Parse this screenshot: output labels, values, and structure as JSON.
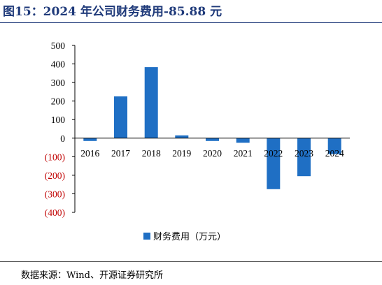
{
  "figure_title": "图15：2024 年公司财务费用-85.88 元",
  "source_note": "数据来源：Wind、开源证券研究所",
  "colors": {
    "bar": "#1F6FC4",
    "title": "#1F3A7A",
    "negative_tick": "#C00000",
    "axis": "#000000"
  },
  "chart_data": {
    "type": "bar",
    "categories": [
      "2016",
      "2017",
      "2018",
      "2019",
      "2020",
      "2021",
      "2022",
      "2023",
      "2024"
    ],
    "series": [
      {
        "name": "财务费用（万元）",
        "values": [
          -15,
          225,
          383,
          15,
          -15,
          -25,
          -275,
          -205,
          -86
        ]
      }
    ],
    "ylim": [
      -400,
      500
    ],
    "yticks": [
      500,
      400,
      300,
      200,
      100,
      0,
      -100,
      -200,
      -300,
      -400
    ],
    "ytick_labels": [
      "500",
      "400",
      "300",
      "200",
      "100",
      "0",
      "(100)",
      "(200)",
      "(300)",
      "(400)"
    ],
    "legend": "bottom-center",
    "grid": false
  }
}
